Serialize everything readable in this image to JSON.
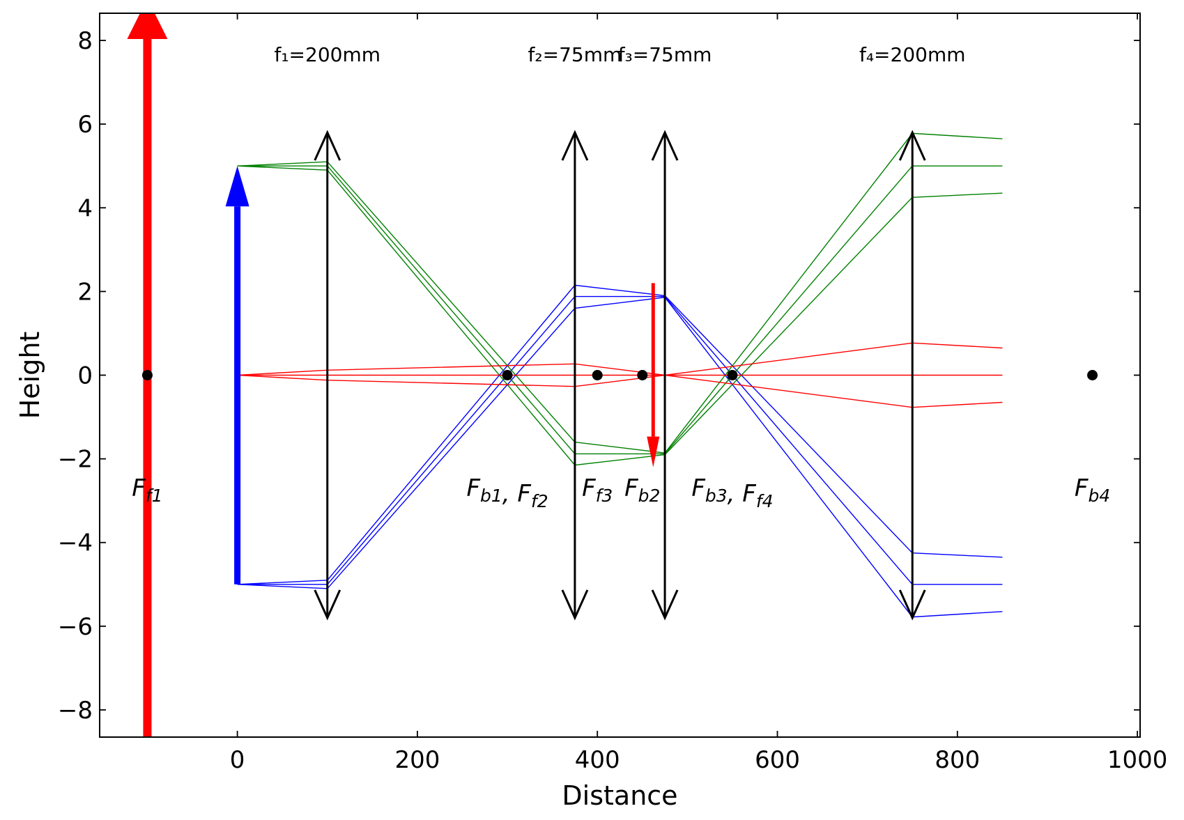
{
  "chart_data": {
    "type": "optical-ray-diagram",
    "title": "",
    "xlabel": "Distance",
    "ylabel": "Height",
    "xlim": [
      -153,
      1003
    ],
    "ylim": [
      -8.65,
      8.65
    ],
    "xticks": [
      0,
      200,
      400,
      600,
      800,
      1000
    ],
    "yticks": [
      -8,
      -6,
      -4,
      -2,
      0,
      2,
      4,
      6,
      8
    ],
    "grid": false,
    "colors": {
      "red": "#ff0000",
      "blue": "#0000ff",
      "green": "#008000",
      "black": "#000000"
    },
    "lenses": [
      {
        "x": 100,
        "half_height": 5.8,
        "label": "f₁=200mm"
      },
      {
        "x": 375,
        "half_height": 5.8,
        "label": "f₂=75mm"
      },
      {
        "x": 475,
        "half_height": 5.8,
        "label": "f₃=75mm"
      },
      {
        "x": 750,
        "half_height": 5.8,
        "label": "f₄=200mm"
      }
    ],
    "objects": [
      {
        "name": "object",
        "x": 0,
        "y_from": -5,
        "y_to": 5,
        "color": "#0000ff"
      },
      {
        "name": "virtual-image",
        "x": -100,
        "y_from": -9,
        "y_to": 9,
        "color": "#ff0000"
      },
      {
        "name": "intermediate-image",
        "x": 462,
        "y_from": 2.2,
        "y_to": -2.2,
        "color": "#ff0000"
      }
    ],
    "focal_points": [
      {
        "x": -100,
        "y": 0
      },
      {
        "x": 300,
        "y": 0
      },
      {
        "x": 400,
        "y": 0
      },
      {
        "x": 450,
        "y": 0
      },
      {
        "x": 550,
        "y": 0
      },
      {
        "x": 950,
        "y": 0
      }
    ],
    "focal_labels": [
      {
        "x": -100,
        "parts": [
          {
            "t": "F",
            "sub": "f1"
          }
        ]
      },
      {
        "x": 300,
        "parts": [
          {
            "t": "F",
            "sub": "b1"
          },
          {
            "t": ", F",
            "sub": "f2"
          }
        ]
      },
      {
        "x": 400,
        "parts": [
          {
            "t": "F",
            "sub": "f3"
          }
        ]
      },
      {
        "x": 450,
        "parts": [
          {
            "t": "F",
            "sub": "b2"
          }
        ]
      },
      {
        "x": 550,
        "parts": [
          {
            "t": "F",
            "sub": "b3"
          },
          {
            "t": ", F",
            "sub": "f4"
          }
        ]
      },
      {
        "x": 950,
        "parts": [
          {
            "t": "F",
            "sub": "b4"
          }
        ]
      }
    ],
    "rays": [
      {
        "color": "#0000ff",
        "points": [
          [
            0,
            -5
          ],
          [
            100,
            -4.9
          ],
          [
            375,
            2.15
          ],
          [
            475,
            1.9
          ],
          [
            750,
            -4.25
          ],
          [
            850,
            -4.35
          ]
        ]
      },
      {
        "color": "#0000ff",
        "points": [
          [
            0,
            -5
          ],
          [
            100,
            -5.0
          ],
          [
            375,
            1.88
          ],
          [
            475,
            1.88
          ],
          [
            750,
            -5.0
          ],
          [
            850,
            -5.0
          ]
        ]
      },
      {
        "color": "#0000ff",
        "points": [
          [
            0,
            -5
          ],
          [
            100,
            -5.1
          ],
          [
            375,
            1.6
          ],
          [
            475,
            1.86
          ],
          [
            750,
            -5.78
          ],
          [
            850,
            -5.65
          ]
        ]
      },
      {
        "color": "#008000",
        "points": [
          [
            0,
            5
          ],
          [
            100,
            5.1
          ],
          [
            375,
            -1.6
          ],
          [
            475,
            -1.86
          ],
          [
            750,
            5.78
          ],
          [
            850,
            5.65
          ]
        ]
      },
      {
        "color": "#008000",
        "points": [
          [
            0,
            5
          ],
          [
            100,
            5.0
          ],
          [
            375,
            -1.88
          ],
          [
            475,
            -1.88
          ],
          [
            750,
            5.0
          ],
          [
            850,
            5.0
          ]
        ]
      },
      {
        "color": "#008000",
        "points": [
          [
            0,
            5
          ],
          [
            100,
            4.9
          ],
          [
            375,
            -2.15
          ],
          [
            475,
            -1.9
          ],
          [
            750,
            4.25
          ],
          [
            850,
            4.35
          ]
        ]
      },
      {
        "color": "#ff0000",
        "points": [
          [
            0,
            0
          ],
          [
            100,
            0.12
          ],
          [
            375,
            0.27
          ],
          [
            475,
            0.0
          ],
          [
            750,
            -0.77
          ],
          [
            850,
            -0.65
          ]
        ]
      },
      {
        "color": "#ff0000",
        "points": [
          [
            0,
            0
          ],
          [
            100,
            0.0
          ],
          [
            375,
            0.0
          ],
          [
            475,
            0.0
          ],
          [
            750,
            0.0
          ],
          [
            850,
            0.0
          ]
        ]
      },
      {
        "color": "#ff0000",
        "points": [
          [
            0,
            0
          ],
          [
            100,
            -0.12
          ],
          [
            375,
            -0.27
          ],
          [
            475,
            0.0
          ],
          [
            750,
            0.77
          ],
          [
            850,
            0.65
          ]
        ]
      }
    ]
  }
}
